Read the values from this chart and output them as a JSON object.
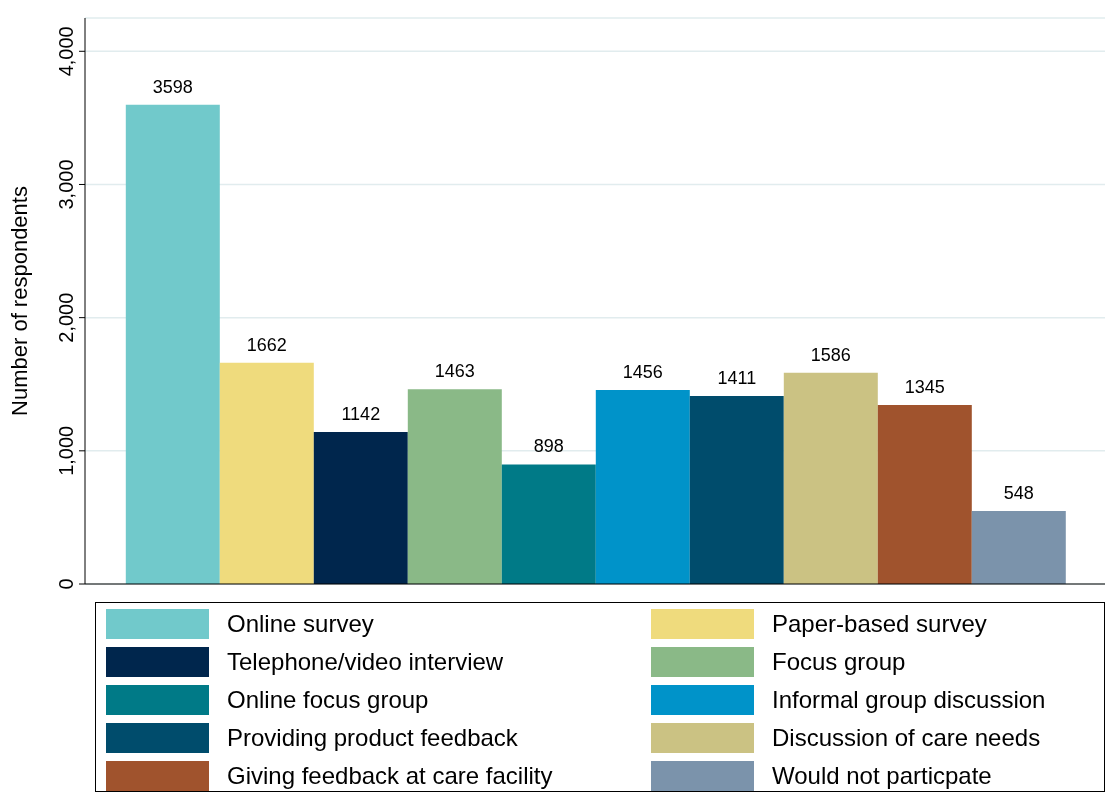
{
  "chart_data": {
    "type": "bar",
    "ylabel": "Number of respondents",
    "categories": [
      null
    ],
    "series": [
      {
        "name": "Online survey",
        "color": "#71c9cb",
        "values": [
          3598
        ]
      },
      {
        "name": "Paper-based survey",
        "color": "#efdb7d",
        "values": [
          1662
        ]
      },
      {
        "name": "Telephone/video interview",
        "color": "#00264d",
        "values": [
          1142
        ]
      },
      {
        "name": "Focus group",
        "color": "#8ab987",
        "values": [
          1463
        ]
      },
      {
        "name": "Online focus group",
        "color": "#007a87",
        "values": [
          898
        ]
      },
      {
        "name": "Informal group discussion",
        "color": "#0093c9",
        "values": [
          1456
        ]
      },
      {
        "name": "Providing product feedback",
        "color": "#004c6c",
        "values": [
          1411
        ]
      },
      {
        "name": "Discussion of care needs",
        "color": "#cbc283",
        "values": [
          1586
        ]
      },
      {
        "name": "Giving feedback at care facility",
        "color": "#a0532d",
        "values": [
          1345
        ]
      },
      {
        "name": "Would not particpate",
        "color": "#7b93ab",
        "values": [
          548
        ]
      }
    ],
    "ylim": [
      0,
      4250
    ],
    "yticks": [
      {
        "value": 0,
        "label": "0"
      },
      {
        "value": 1000,
        "label": "1,000"
      },
      {
        "value": 2000,
        "label": "2,000"
      },
      {
        "value": 3000,
        "label": "3,000"
      },
      {
        "value": 4000,
        "label": "4,000"
      }
    ],
    "grid": "y",
    "data_labels": true,
    "legend": "bottom",
    "tick_labels": "y"
  }
}
